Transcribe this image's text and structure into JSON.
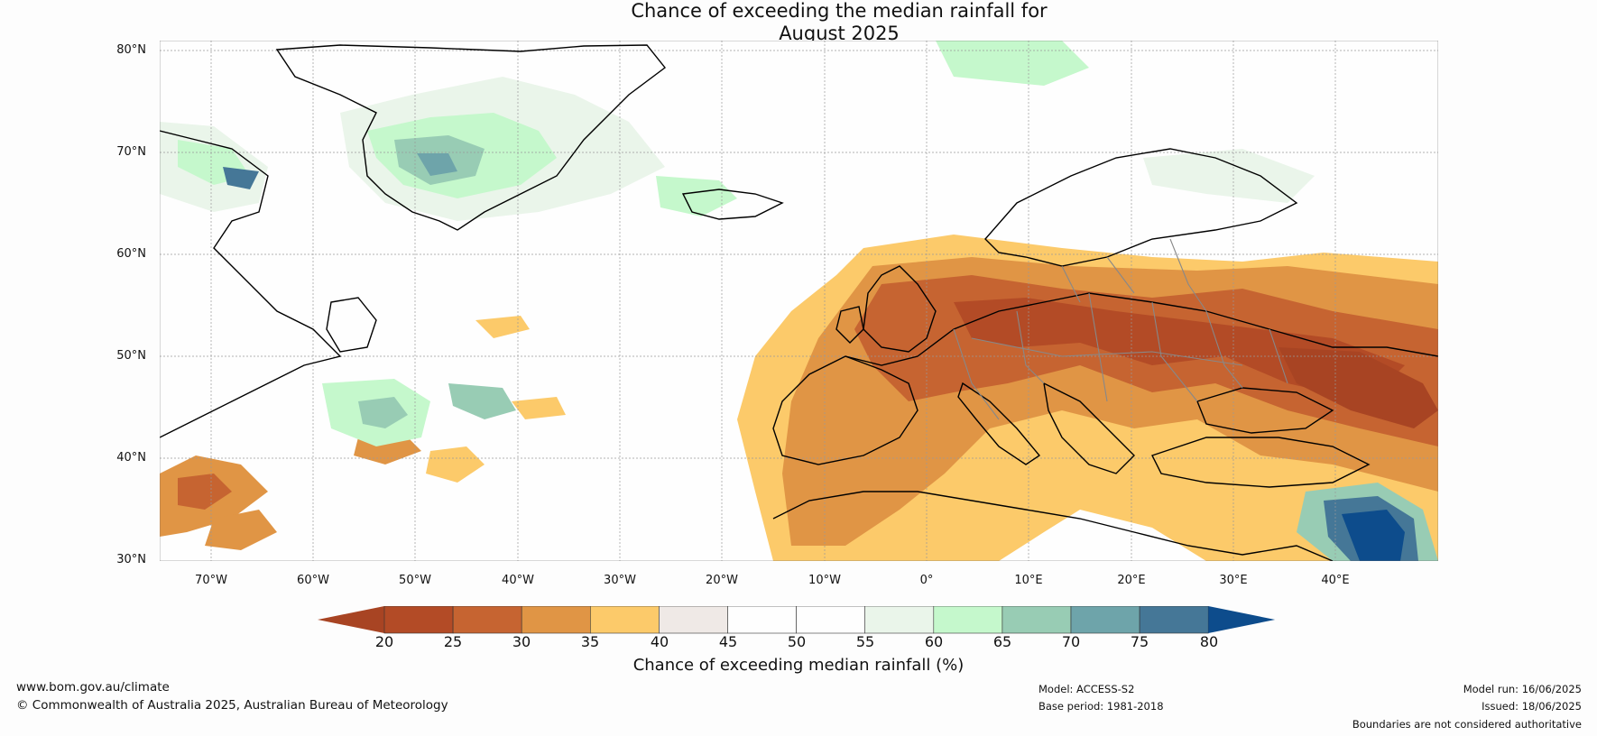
{
  "title_line1": "Chance of exceeding the median rainfall for",
  "title_line2": "August 2025",
  "lat_labels": [
    "80°N",
    "70°N",
    "60°N",
    "50°N",
    "40°N",
    "30°N"
  ],
  "lon_labels": [
    "70°W",
    "60°W",
    "50°W",
    "40°W",
    "30°W",
    "20°W",
    "10°W",
    "0°",
    "10°E",
    "20°E",
    "30°E",
    "40°E"
  ],
  "colorbar": {
    "label": "Chance of exceeding median rainfall (%)",
    "ticks": [
      "20",
      "25",
      "30",
      "35",
      "40",
      "45",
      "50",
      "55",
      "60",
      "65",
      "70",
      "75",
      "80"
    ],
    "colors": [
      "#a84423",
      "#b34b26",
      "#c66431",
      "#e09545",
      "#fcca6a",
      "#efe9e6",
      "#fefefe",
      "#fefefe",
      "#eaf5ea",
      "#c5f8cc",
      "#98ccb4",
      "#6ea4aa",
      "#457797",
      "#0d4c8c"
    ]
  },
  "footer": {
    "website": "www.bom.gov.au/climate",
    "copyright": "© Commonwealth of Australia 2025, Australian Bureau of Meteorology",
    "model": "Model: ACCESS-S2",
    "base_period": "Base period: 1981-2018",
    "model_run": "Model run: 16/06/2025",
    "issued": "Issued: 18/06/2025",
    "disclaimer": "Boundaries are not considered authoritative"
  }
}
